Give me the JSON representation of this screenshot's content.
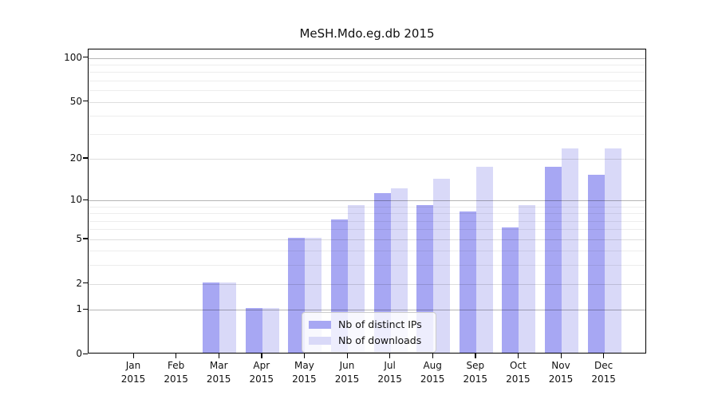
{
  "chart_data": {
    "type": "bar",
    "title": "MeSH.Mdo.eg.db 2015",
    "categories": [
      "Jan",
      "Feb",
      "Mar",
      "Apr",
      "May",
      "Jun",
      "Jul",
      "Aug",
      "Sep",
      "Oct",
      "Nov",
      "Dec"
    ],
    "year_label": "2015",
    "series": [
      {
        "name": "Nb of distinct IPs",
        "color": "#a7a7f3",
        "values": [
          0,
          0,
          2,
          1,
          5,
          7,
          11,
          9,
          8,
          6,
          17,
          15
        ]
      },
      {
        "name": "Nb of downloads",
        "color": "#d9d9f8",
        "values": [
          0,
          0,
          2,
          1,
          5,
          9,
          12,
          14,
          17,
          9,
          23,
          23
        ]
      }
    ],
    "xlabel": "",
    "ylabel": "",
    "yscale": "log1p",
    "ylim": [
      0,
      114
    ],
    "yticks": [
      0,
      1,
      2,
      5,
      10,
      20,
      50,
      100
    ],
    "yticks_minor": [
      3,
      4,
      6,
      7,
      8,
      9,
      30,
      40,
      60,
      70,
      80,
      90
    ],
    "grid": true,
    "legend_position": "lower center"
  }
}
